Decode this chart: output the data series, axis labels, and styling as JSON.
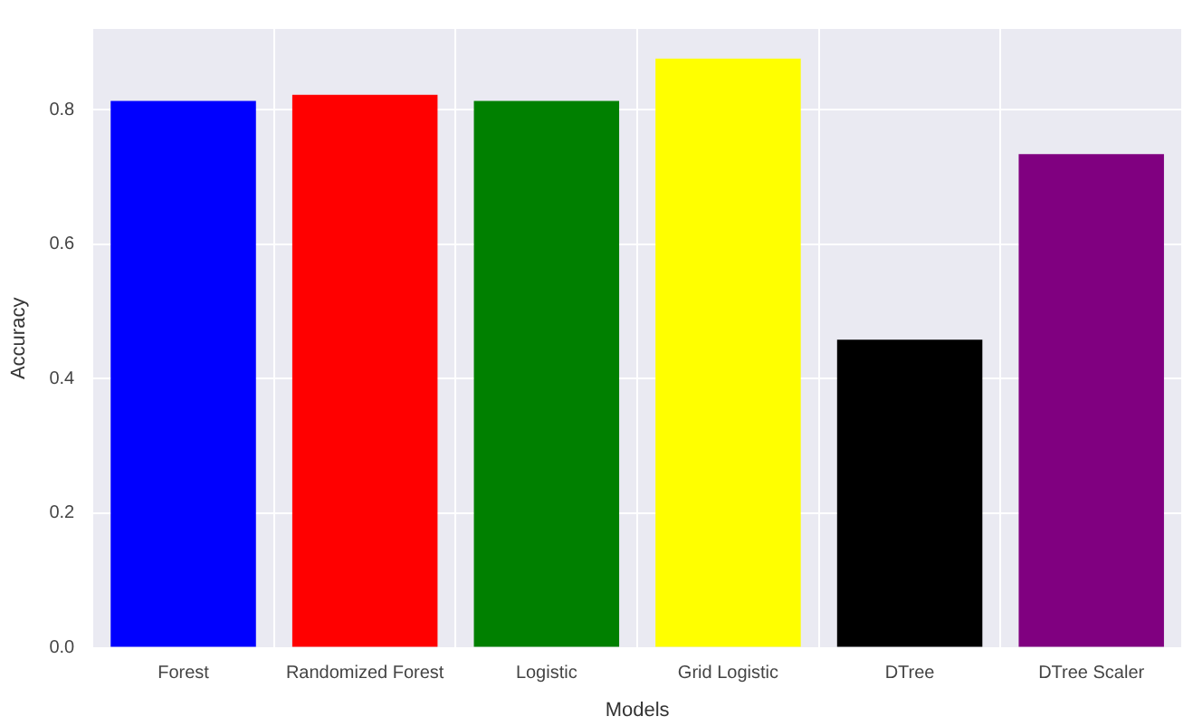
{
  "chart_data": {
    "type": "bar",
    "xlabel": "Models",
    "ylabel": "Accuracy",
    "categories": [
      "Forest",
      "Randomized Forest",
      "Logistic",
      "Grid Logistic",
      "DTree",
      "DTree Scaler"
    ],
    "values": [
      0.813,
      0.822,
      0.813,
      0.876,
      0.458,
      0.734
    ],
    "colors": [
      "#0000ff",
      "#ff0000",
      "#008000",
      "#ffff00",
      "#000000",
      "#800080"
    ],
    "ylim": [
      0,
      0.92
    ],
    "yticks": [
      {
        "value": 0,
        "label": "0.0"
      },
      {
        "value": 0.2,
        "label": "0.2"
      },
      {
        "value": 0.4,
        "label": "0.4"
      },
      {
        "value": 0.6,
        "label": "0.6"
      },
      {
        "value": 0.8,
        "label": "0.8"
      }
    ],
    "grid": true
  }
}
